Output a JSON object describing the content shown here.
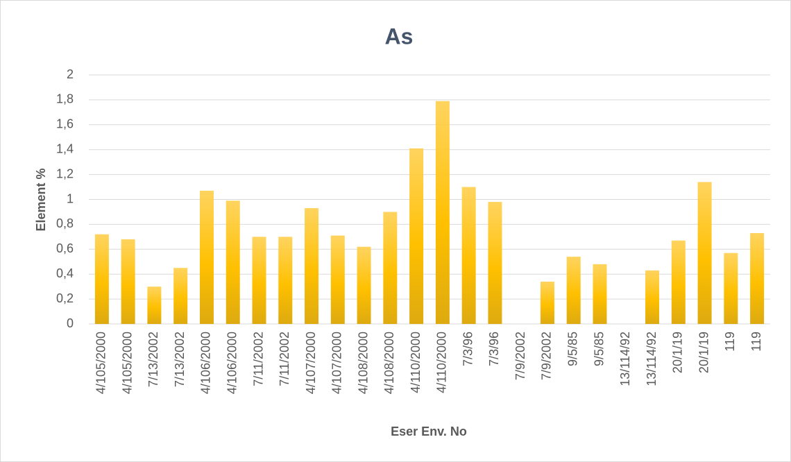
{
  "chart_data": {
    "type": "bar",
    "title": "As",
    "x_label": "Eser Env. No",
    "y_label": "Element %",
    "categories": [
      "4/105/2000",
      "4/105/2000",
      "7/13/2002",
      "7/13/2002",
      "4/106/2000",
      "4/106/2000",
      "7/11/2002",
      "7/11/2002",
      "4/107/2000",
      "4/107/2000",
      "4/108/2000",
      "4/108/2000",
      "4/110/2000",
      "4/110/2000",
      "7/3/96",
      "7/3/96",
      "7/9/2002",
      "7/9/2002",
      "9/5/85",
      "9/5/85",
      "13/114/92",
      "13/114/92",
      "20/1/19",
      "20/1/19",
      "119",
      "119"
    ],
    "values": [
      0.72,
      0.68,
      0.3,
      0.45,
      1.07,
      0.99,
      0.7,
      0.7,
      0.93,
      0.71,
      0.62,
      0.9,
      1.41,
      1.79,
      1.1,
      0.98,
      null,
      0.34,
      0.54,
      0.48,
      null,
      0.43,
      0.67,
      1.14,
      0.57,
      0.73
    ],
    "color": "#ffc000",
    "ylim": [
      0,
      2
    ],
    "yticks": [
      0,
      {
        "value": 0.2,
        "label": "0,2"
      },
      {
        "value": 0.4,
        "label": "0,4"
      },
      {
        "value": 0.6,
        "label": "0,6"
      },
      {
        "value": 0.8,
        "label": "0,8"
      },
      1,
      {
        "value": 1.2,
        "label": "1,2"
      },
      {
        "value": 1.4,
        "label": "1,4"
      },
      {
        "value": 1.6,
        "label": "1,6"
      },
      {
        "value": 1.8,
        "label": "1,8"
      },
      2
    ],
    "grid": true
  }
}
